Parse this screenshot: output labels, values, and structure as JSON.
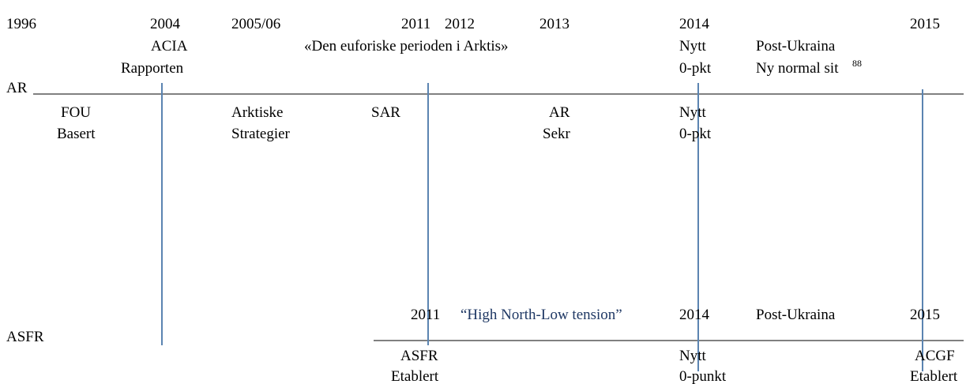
{
  "timeline": {
    "top": [
      "1996",
      "2004",
      "2005/06",
      "2011",
      "2012",
      "2013",
      "2014",
      "2015",
      "ACIA",
      "«Den euforiske perioden i Arktis»",
      "Nytt",
      "Post-Ukraina",
      "Rapporten",
      "0-pkt",
      "Ny normal sit",
      "88"
    ],
    "ar": {
      "label": "AR",
      "items": [
        "FOU",
        "Basert",
        "Arktiske",
        "Strategier",
        "SAR",
        "AR",
        "Sekr",
        "Nytt",
        "0-pkt"
      ]
    },
    "lower": [
      "2011",
      "“High North-Low tension”",
      "2014",
      "Post-Ukraina",
      "2015"
    ],
    "asfr": {
      "label": "ASFR",
      "items": [
        "ASFR",
        "Etablert",
        "Nytt",
        "0-punkt",
        "ACGF",
        "Etablert"
      ]
    }
  }
}
